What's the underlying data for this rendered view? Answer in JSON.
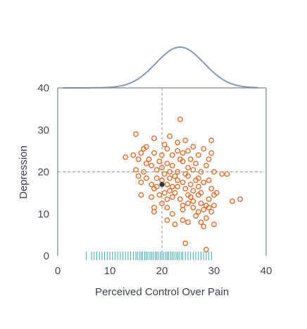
{
  "chart_data": {
    "type": "scatter",
    "xlabel": "Perceived Control Over Pain",
    "ylabel": "Depression",
    "xlim": [
      0,
      40
    ],
    "ylim": [
      0,
      40
    ],
    "x_ticks": [
      "0",
      "10",
      "20",
      "30",
      "40"
    ],
    "y_ticks": [
      "0",
      "10",
      "20",
      "30",
      "40"
    ],
    "grid": false,
    "reference_lines": {
      "x": 20,
      "y": 20
    },
    "mean_point": {
      "x": 20,
      "y": 17
    },
    "marginal_x": "density curve (top) and rug (bottom)",
    "colors": {
      "points": "#d8773f",
      "rug": "#3fa7a5",
      "density": "#8a98ae",
      "mean": "#2c3440",
      "reference": "#8a96aa",
      "axes": "#7c8594"
    },
    "series": [
      {
        "points": [
          [
            15,
            29
          ],
          [
            18.5,
            28
          ],
          [
            23.5,
            32.5
          ],
          [
            21.5,
            28.5
          ],
          [
            24.5,
            27.5
          ],
          [
            29.5,
            27.5
          ],
          [
            23,
            27
          ],
          [
            13,
            23.5
          ],
          [
            14.5,
            24
          ],
          [
            16,
            24.5
          ],
          [
            16.5,
            25.5
          ],
          [
            17,
            26
          ],
          [
            18.5,
            24.5
          ],
          [
            20,
            24
          ],
          [
            21,
            25.5
          ],
          [
            22,
            24
          ],
          [
            23,
            25
          ],
          [
            24,
            24.5
          ],
          [
            25,
            25
          ],
          [
            26,
            26
          ],
          [
            27,
            24
          ],
          [
            28,
            25.5
          ],
          [
            29,
            23
          ],
          [
            29.5,
            24.5
          ],
          [
            15,
            20.5
          ],
          [
            15.5,
            23
          ],
          [
            16.5,
            20
          ],
          [
            17,
            22
          ],
          [
            18,
            21.5
          ],
          [
            19,
            20.5
          ],
          [
            20,
            21
          ],
          [
            21,
            22
          ],
          [
            22,
            21.5
          ],
          [
            23,
            20
          ],
          [
            24,
            22.5
          ],
          [
            25,
            21
          ],
          [
            26.5,
            22
          ],
          [
            27.5,
            20
          ],
          [
            28.5,
            21.5
          ],
          [
            30,
            20
          ],
          [
            31.5,
            19.5
          ],
          [
            32.5,
            19.5
          ],
          [
            15.5,
            19
          ],
          [
            16,
            17.5
          ],
          [
            17,
            18.5
          ],
          [
            18,
            17
          ],
          [
            18.5,
            16
          ],
          [
            19,
            18.5
          ],
          [
            20.5,
            19.5
          ],
          [
            21,
            17
          ],
          [
            21.5,
            18.5
          ],
          [
            22,
            16.5
          ],
          [
            22.5,
            15
          ],
          [
            23,
            18
          ],
          [
            24,
            17.5
          ],
          [
            24.5,
            16
          ],
          [
            25,
            19
          ],
          [
            25.5,
            17
          ],
          [
            26,
            15.5
          ],
          [
            26.5,
            18
          ],
          [
            27,
            16.5
          ],
          [
            28,
            17.5
          ],
          [
            29,
            18
          ],
          [
            29.5,
            16
          ],
          [
            30.5,
            15
          ],
          [
            16,
            14.5
          ],
          [
            18,
            14
          ],
          [
            19.5,
            14.5
          ],
          [
            20.5,
            15
          ],
          [
            21,
            13.5
          ],
          [
            22,
            14
          ],
          [
            23.5,
            13.5
          ],
          [
            24,
            12
          ],
          [
            25.5,
            14
          ],
          [
            26,
            13
          ],
          [
            27,
            14.5
          ],
          [
            27.5,
            12.5
          ],
          [
            28.5,
            12
          ],
          [
            29,
            13.5
          ],
          [
            30,
            14.5
          ],
          [
            33.5,
            13
          ],
          [
            35,
            13.5
          ],
          [
            18.5,
            11.5
          ],
          [
            18.5,
            10.5
          ],
          [
            20,
            12.5
          ],
          [
            21,
            11.5
          ],
          [
            22,
            10
          ],
          [
            24,
            11
          ],
          [
            25,
            12.5
          ],
          [
            26,
            11.5
          ],
          [
            27,
            10.5
          ],
          [
            28,
            11
          ],
          [
            29,
            11.5
          ],
          [
            29.5,
            10.5
          ],
          [
            30,
            12
          ],
          [
            21,
            8.5
          ],
          [
            22.5,
            7.5
          ],
          [
            24,
            8.5
          ],
          [
            25,
            8
          ],
          [
            26.5,
            9.5
          ],
          [
            27.5,
            8
          ],
          [
            28.5,
            9
          ],
          [
            30,
            7.5
          ],
          [
            28,
            7
          ],
          [
            24.5,
            3
          ],
          [
            28.5,
            1.5
          ],
          [
            20.5,
            26.5
          ],
          [
            19.5,
            22.5
          ],
          [
            17.5,
            23
          ],
          [
            21.5,
            20
          ],
          [
            23.5,
            23
          ],
          [
            25.5,
            23
          ],
          [
            20,
            18
          ],
          [
            19,
            16.5
          ],
          [
            22.5,
            19
          ],
          [
            24.5,
            19.5
          ],
          [
            26,
            20.5
          ],
          [
            27,
            18.5
          ],
          [
            23,
            16.5
          ],
          [
            25,
            14.5
          ],
          [
            21.5,
            15.5
          ],
          [
            27.5,
            15
          ]
        ]
      }
    ],
    "rug_x": [
      5.5,
      6.5,
      7,
      7.5,
      8,
      8.5,
      9,
      9.5,
      10,
      10.5,
      11,
      11.5,
      12,
      12.5,
      13,
      13.5,
      14,
      14.5,
      15,
      15.3,
      15.7,
      16,
      16.3,
      16.7,
      17,
      17.3,
      17.7,
      18,
      18.3,
      18.7,
      19,
      19.3,
      19.7,
      20,
      20.3,
      20.7,
      21,
      21.3,
      21.7,
      22,
      22.3,
      22.7,
      23,
      23.3,
      23.7,
      24,
      24.5,
      25,
      25.5,
      26,
      26.5,
      27,
      27.5,
      28,
      28.5,
      29,
      29.5
    ]
  }
}
